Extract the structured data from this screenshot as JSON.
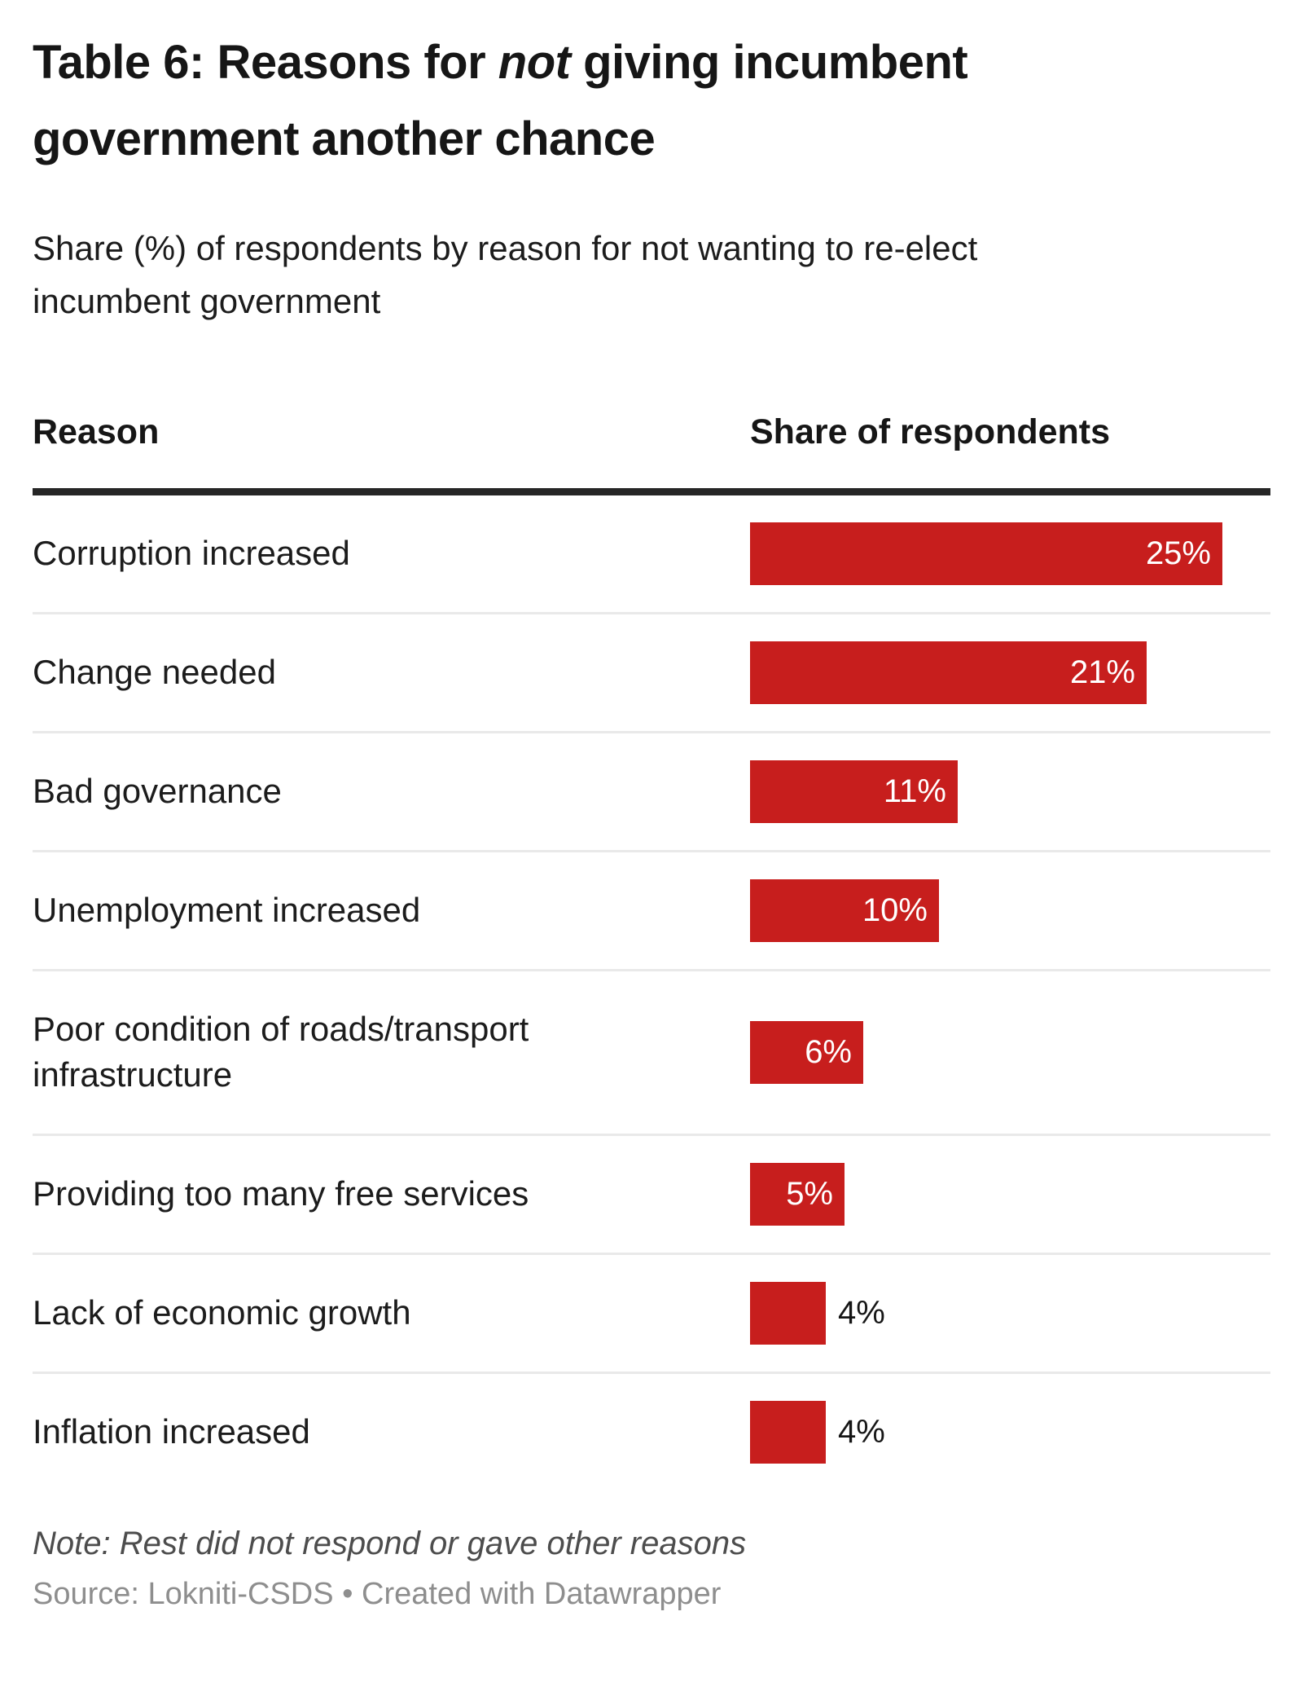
{
  "header": {
    "title": {
      "prefix": "Table 6: Reasons for ",
      "emphasis": "not",
      "suffix": " giving incumbent government another chance"
    },
    "subtitle": "Share (%) of respondents by reason for not wanting to re-elect incumbent government"
  },
  "table": {
    "columns": {
      "reason": "Reason",
      "share": "Share of respondents"
    }
  },
  "footer": {
    "note": "Note: Rest did not respond or gave other reasons",
    "source": "Source: Lokniti-CSDS • Created with Datawrapper"
  },
  "chart_data": {
    "type": "bar",
    "orientation": "horizontal",
    "title": "Table 6: Reasons for not giving incumbent government another chance",
    "subtitle": "Share (%) of respondents by reason for not wanting to re-elect incumbent government",
    "columns": [
      "Reason",
      "Share of respondents"
    ],
    "categories": [
      "Corruption increased",
      "Change needed",
      "Bad governance",
      "Unemployment increased",
      "Poor condition of roads/transport infrastructure",
      "Providing too many free services",
      "Lack of economic growth",
      "Inflation increased"
    ],
    "values": [
      25,
      21,
      11,
      10,
      6,
      5,
      4,
      4
    ],
    "value_labels": [
      "25%",
      "21%",
      "11%",
      "10%",
      "6%",
      "5%",
      "4%",
      "4%"
    ],
    "value_label_placement": [
      "inside",
      "inside",
      "inside",
      "inside",
      "inside",
      "inside",
      "outside",
      "outside"
    ],
    "unit": "%",
    "xlim": [
      0,
      25
    ],
    "grid": false,
    "legend": "none",
    "bar_color": "#c71e1d",
    "note": "Note: Rest did not respond or gave other reasons",
    "source": "Source: Lokniti-CSDS • Created with Datawrapper"
  }
}
